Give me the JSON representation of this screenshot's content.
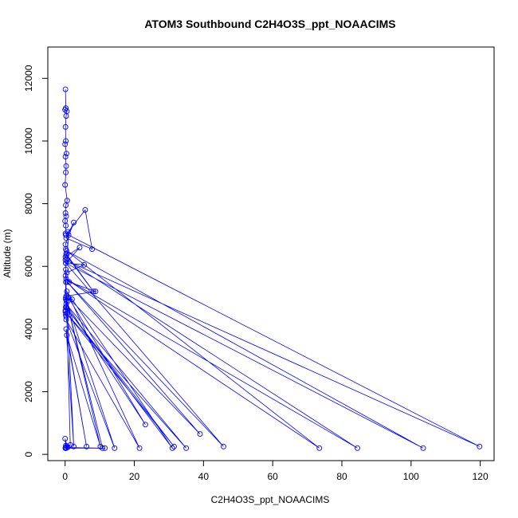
{
  "chart_data": {
    "type": "line",
    "title": "ATOM3 Southbound C2H4O3S_ppt_NOAACIMS",
    "xlabel": "C2H4O3S_ppt_NOAACIMS",
    "ylabel": "Altitude (m)",
    "xlim": [
      -5,
      124
    ],
    "ylim": [
      -200,
      13000
    ],
    "x_ticks": [
      0,
      20,
      40,
      60,
      80,
      100,
      120
    ],
    "y_ticks": [
      0,
      2000,
      4000,
      6000,
      8000,
      10000,
      12000
    ],
    "series_color": "#0000ff",
    "marker": "open-circle",
    "grid": false,
    "legend": "none",
    "series": [
      {
        "x": [
          0.1,
          0.2,
          0.0,
          0.5,
          0.3,
          0.1,
          0.2,
          0.0,
          0.4,
          0.1,
          0.3,
          0.2,
          0.0,
          0.6,
          0.2,
          0.1,
          0.3,
          0.0,
          0.2,
          0.1,
          0.8,
          0.2,
          5.8,
          7.8,
          0.3,
          2.5,
          0.1,
          0.2,
          0.4,
          8.2,
          0.3,
          0.1,
          4.2,
          0.2,
          5.5,
          0.5,
          0.1,
          1.2,
          8.8,
          0.3,
          0.2,
          2.0,
          0.4,
          0.1,
          0.2,
          0.3,
          0.1,
          0.2,
          0.1,
          119.8,
          1.0,
          0.5,
          84.5,
          0.3,
          73.5,
          0.4,
          103.5,
          0.2,
          45.8,
          0.6,
          39.0,
          1.0,
          23.2,
          0.3,
          35.0,
          0.4,
          31.5,
          0.2,
          31.0,
          0.5,
          21.5,
          0.3,
          14.3,
          0.4,
          10.8,
          0.2,
          10.2,
          0.5,
          6.2,
          0.3,
          2.5,
          0.2,
          1.5,
          0.1,
          11.5,
          0.2,
          0.5,
          0.0,
          0.3,
          0.8,
          0.2,
          0.1
        ],
        "y": [
          11650,
          11050,
          11000,
          10950,
          10800,
          10450,
          10000,
          9900,
          9600,
          9500,
          9200,
          9000,
          8600,
          8100,
          7950,
          7700,
          7600,
          7450,
          7300,
          7050,
          7100,
          7000,
          7800,
          6550,
          6900,
          7400,
          6700,
          6550,
          6350,
          5200,
          6400,
          6300,
          6600,
          6100,
          6050,
          5800,
          5700,
          5500,
          5200,
          5050,
          4950,
          4950,
          4700,
          4550,
          4450,
          4400,
          4600,
          5900,
          6200,
          250,
          7000,
          6200,
          200,
          5600,
          200,
          6500,
          200,
          6100,
          250,
          5500,
          650,
          5000,
          950,
          4800,
          200,
          4500,
          250,
          4700,
          200,
          5200,
          200,
          4300,
          200,
          4900,
          200,
          5000,
          250,
          3800,
          250,
          4000,
          250,
          5500,
          300,
          200,
          200,
          220,
          260,
          500,
          200,
          230,
          280,
          200
        ]
      }
    ]
  }
}
